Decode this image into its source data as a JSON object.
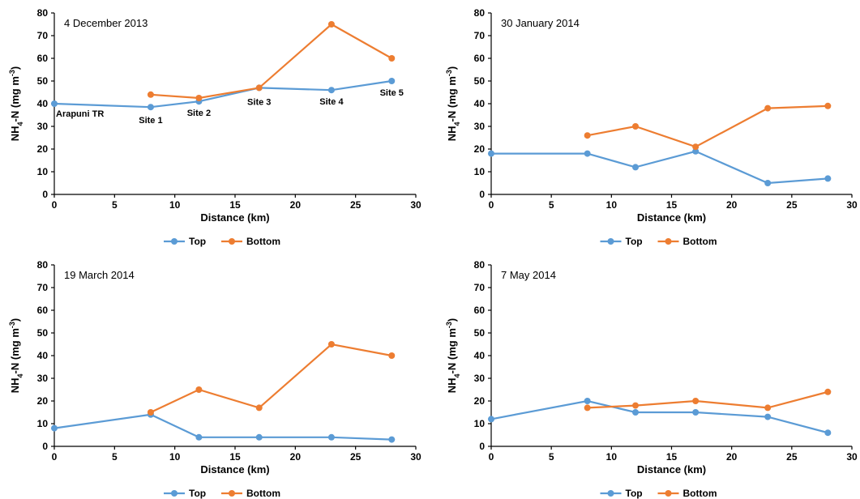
{
  "chart_data": [
    {
      "type": "line",
      "title": "4 December 2013",
      "xlabel": "Distance  (km)",
      "ylabel": {
        "pre": "NH",
        "sub": "4",
        "mid": "-N  (mg m",
        "sup": "-3",
        "post": ")"
      },
      "xlim": [
        0,
        30
      ],
      "ylim": [
        0,
        80
      ],
      "xticks": [
        0,
        5,
        10,
        15,
        20,
        25,
        30
      ],
      "yticks": [
        0,
        10,
        20,
        30,
        40,
        50,
        60,
        70,
        80
      ],
      "grid": false,
      "legend": "bottom",
      "series": [
        {
          "name": "Top",
          "color": "#5B9BD5",
          "x": [
            0,
            8,
            12,
            17,
            23,
            28
          ],
          "y": [
            40,
            38.5,
            41,
            47,
            46,
            50
          ]
        },
        {
          "name": "Bottom",
          "color": "#ED7D31",
          "x": [
            8,
            12,
            17,
            23,
            28
          ],
          "y": [
            44,
            42.5,
            47,
            75,
            60
          ]
        }
      ],
      "annotations": [
        {
          "text": "Arapuni  TR",
          "x": 0,
          "y": 40
        },
        {
          "text": "Site 1",
          "x": 8,
          "y": 38.5
        },
        {
          "text": "Site 2",
          "x": 12,
          "y": 41
        },
        {
          "text": "Site 3",
          "x": 17,
          "y": 47
        },
        {
          "text": "Site 4",
          "x": 23,
          "y": 46
        },
        {
          "text": "Site 5",
          "x": 28,
          "y": 50
        }
      ]
    },
    {
      "type": "line",
      "title": "30 January 2014",
      "xlabel": "Distance  (km)",
      "ylabel": {
        "pre": "NH",
        "sub": "4",
        "mid": "-N  (mg m",
        "sup": "-3",
        "post": ")"
      },
      "xlim": [
        0,
        30
      ],
      "ylim": [
        0,
        80
      ],
      "xticks": [
        0,
        5,
        10,
        15,
        20,
        25,
        30
      ],
      "yticks": [
        0,
        10,
        20,
        30,
        40,
        50,
        60,
        70,
        80
      ],
      "grid": false,
      "legend": "bottom",
      "series": [
        {
          "name": "Top",
          "color": "#5B9BD5",
          "x": [
            0,
            8,
            12,
            17,
            23,
            28
          ],
          "y": [
            18,
            18,
            12,
            19,
            5,
            7
          ]
        },
        {
          "name": "Bottom",
          "color": "#ED7D31",
          "x": [
            8,
            12,
            17,
            23,
            28
          ],
          "y": [
            26,
            30,
            21,
            38,
            39
          ]
        }
      ],
      "annotations": []
    },
    {
      "type": "line",
      "title": "19 March 2014",
      "xlabel": "Distance  (km)",
      "ylabel": {
        "pre": "NH",
        "sub": "4",
        "mid": "-N  (mg m",
        "sup": "-3",
        "post": ")"
      },
      "xlim": [
        0,
        30
      ],
      "ylim": [
        0,
        80
      ],
      "xticks": [
        0,
        5,
        10,
        15,
        20,
        25,
        30
      ],
      "yticks": [
        0,
        10,
        20,
        30,
        40,
        50,
        60,
        70,
        80
      ],
      "grid": false,
      "legend": "bottom",
      "series": [
        {
          "name": "Top",
          "color": "#5B9BD5",
          "x": [
            0,
            8,
            12,
            17,
            23,
            28
          ],
          "y": [
            8,
            14,
            4,
            4,
            4,
            3
          ]
        },
        {
          "name": "Bottom",
          "color": "#ED7D31",
          "x": [
            8,
            12,
            17,
            23,
            28
          ],
          "y": [
            15,
            25,
            17,
            45,
            40
          ]
        }
      ],
      "annotations": []
    },
    {
      "type": "line",
      "title": "7 May 2014",
      "xlabel": "Distance  (km)",
      "ylabel": {
        "pre": "NH",
        "sub": "4",
        "mid": "-N  (mg m",
        "sup": "-3",
        "post": ")"
      },
      "xlim": [
        0,
        30
      ],
      "ylim": [
        0,
        80
      ],
      "xticks": [
        0,
        5,
        10,
        15,
        20,
        25,
        30
      ],
      "yticks": [
        0,
        10,
        20,
        30,
        40,
        50,
        60,
        70,
        80
      ],
      "grid": false,
      "legend": "bottom",
      "series": [
        {
          "name": "Top",
          "color": "#5B9BD5",
          "x": [
            0,
            8,
            12,
            17,
            23,
            28
          ],
          "y": [
            12,
            20,
            15,
            15,
            13,
            6
          ]
        },
        {
          "name": "Bottom",
          "color": "#ED7D31",
          "x": [
            8,
            12,
            17,
            23,
            28
          ],
          "y": [
            17,
            18,
            20,
            17,
            24
          ]
        }
      ],
      "annotations": []
    }
  ]
}
